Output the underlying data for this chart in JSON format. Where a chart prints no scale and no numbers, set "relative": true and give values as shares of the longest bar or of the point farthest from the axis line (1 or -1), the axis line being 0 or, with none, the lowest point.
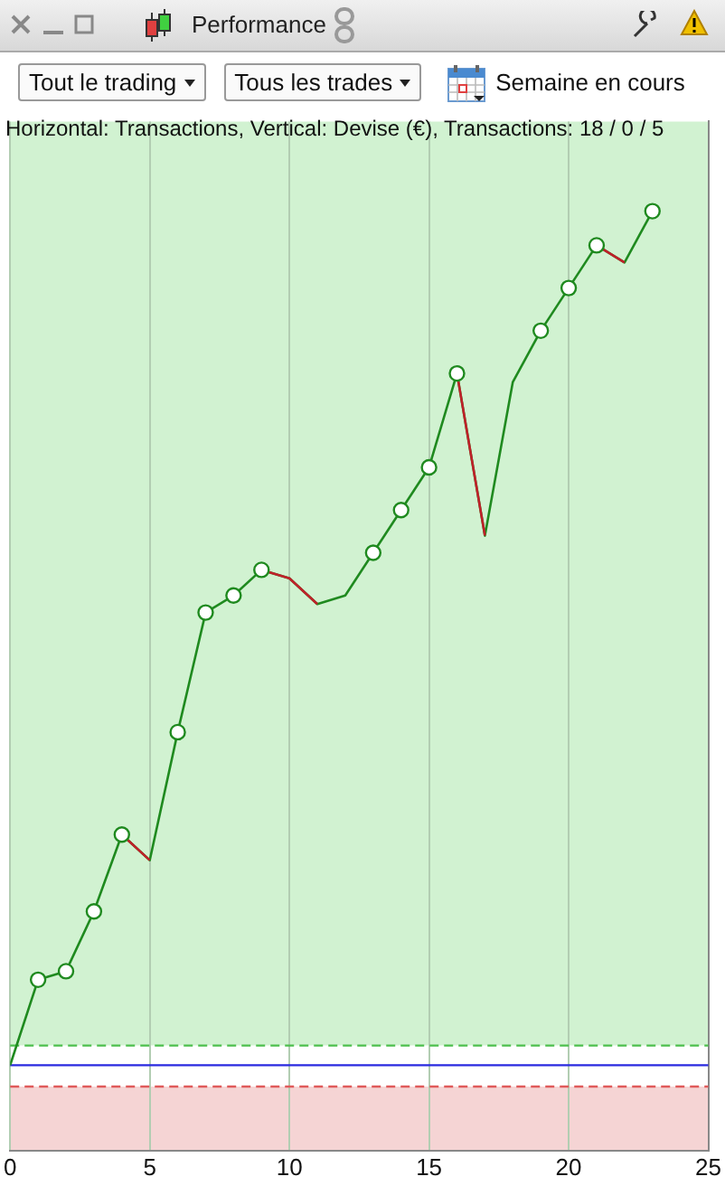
{
  "chart_data": {
    "type": "line",
    "title": "Performance",
    "subtitle": "Horizontal: Transactions, Vertical: Devise (€), Transactions: 18 / 0 / 5",
    "annotations": [
      "Tout le trading",
      "Tous les trades",
      "Semaine en cours"
    ],
    "relative": true,
    "x": [
      0,
      1,
      2,
      3,
      4,
      5,
      6,
      7,
      8,
      9,
      10,
      11,
      12,
      13,
      14,
      15,
      16,
      17,
      18,
      19,
      20,
      21,
      22,
      23
    ],
    "series": [
      {
        "color": "#1f8a1f",
        "values": [
          0,
          0.1,
          0.11,
          0.18,
          0.27,
          0.24,
          0.39,
          0.53,
          0.55,
          0.58,
          0.57,
          0.54,
          0.55,
          0.6,
          0.65,
          0.7,
          0.81,
          0.62,
          0.8,
          0.86,
          0.91,
          0.96,
          0.94,
          1
        ]
      },
      {
        "color": "#c0202a",
        "values": [
          null,
          null,
          null,
          null,
          0.27,
          0.24,
          null,
          null,
          null,
          0.58,
          0.57,
          0.54,
          null,
          null,
          null,
          null,
          0.81,
          0.62,
          null,
          null,
          null,
          0.96,
          0.94,
          null
        ]
      },
      {
        "type": "scatter",
        "color": "#1f8a1f",
        "marker": "circle",
        "values": [
          null,
          0.1,
          0.11,
          0.18,
          0.27,
          null,
          0.39,
          0.53,
          0.55,
          0.58,
          null,
          null,
          null,
          0.6,
          0.65,
          0.7,
          0.81,
          null,
          null,
          0.86,
          0.91,
          0.96,
          null,
          1
        ]
      }
    ],
    "xlim": [
      0,
      25
    ],
    "xticks": [
      0,
      5,
      10,
      15,
      20,
      25
    ],
    "bands": [
      {
        "axis": "y",
        "from": 0.023,
        "to": 1.105,
        "color": "#d1f2d1"
      },
      {
        "axis": "y",
        "from": -0.1,
        "to": -0.025,
        "color": "#f5d4d4"
      }
    ],
    "ref_lines": [
      {
        "axis": "y",
        "value": 0,
        "color": "#2a2ae0",
        "line_style": "solid"
      },
      {
        "axis": "y",
        "value": 0.023,
        "color": "#4cbf4c",
        "line_style": "dashed"
      },
      {
        "axis": "y",
        "value": -0.025,
        "color": "#e05a5a",
        "line_style": "dashed"
      }
    ],
    "grid": "x",
    "legend": false
  }
}
